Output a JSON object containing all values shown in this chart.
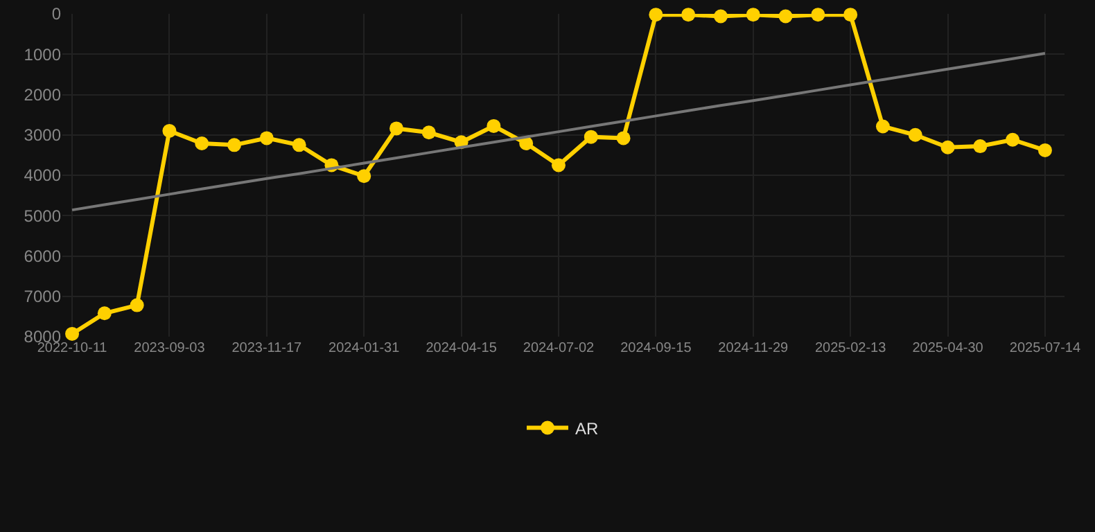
{
  "chart_data": {
    "type": "line",
    "categories": [
      "2022-10-11",
      null,
      null,
      "2023-09-03",
      null,
      null,
      "2023-11-17",
      null,
      null,
      "2024-01-31",
      null,
      null,
      "2024-04-15",
      null,
      null,
      "2024-07-02",
      null,
      null,
      "2024-09-15",
      null,
      null,
      "2024-11-29",
      null,
      null,
      "2025-02-13",
      null,
      null,
      "2025-04-30",
      null,
      null,
      "2025-07-14"
    ],
    "series": [
      {
        "name": "AR",
        "color": "#ffd000",
        "values": [
          7930,
          7420,
          7220,
          2900,
          3210,
          3250,
          3080,
          3250,
          3750,
          4020,
          2840,
          2940,
          3180,
          2780,
          3210,
          3750,
          3050,
          3080,
          20,
          20,
          60,
          20,
          60,
          20,
          20,
          2790,
          3000,
          3310,
          3280,
          3120,
          3380
        ]
      },
      {
        "type": "line",
        "color": "#777777",
        "marker": "none",
        "values": [
          4860,
          4730,
          4600,
          4470,
          4340,
          4210,
          4080,
          3960,
          3830,
          3700,
          3570,
          3440,
          3310,
          3180,
          3050,
          2920,
          2790,
          2660,
          2530,
          2400,
          2270,
          2150,
          2020,
          1890,
          1760,
          1630,
          1500,
          1370,
          1240,
          1110,
          980
        ]
      }
    ],
    "ylim": [
      8000,
      0
    ],
    "yticks": [
      0,
      1000,
      2000,
      3000,
      4000,
      5000,
      6000,
      7000,
      8000
    ],
    "grid": true,
    "legend": "bottom",
    "marker": "circle",
    "line_style": "solid"
  }
}
